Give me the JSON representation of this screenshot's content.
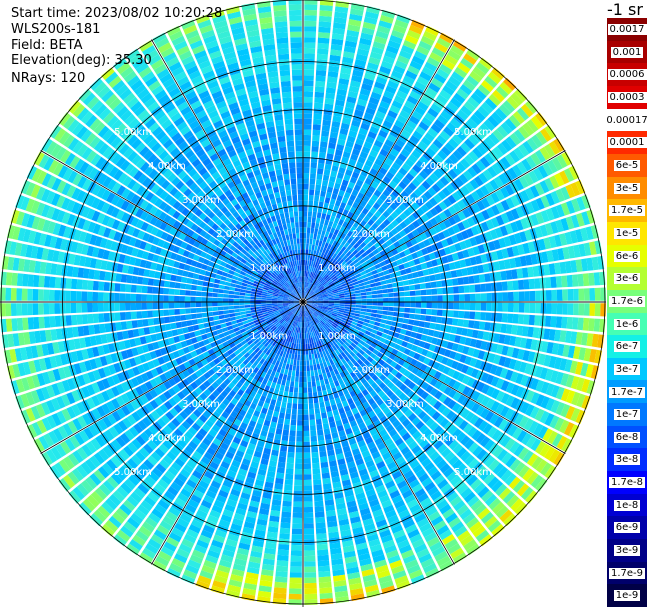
{
  "header": {
    "start_time": "Start time: 2023/08/02 10:20:28",
    "instrument": "WLS200s-181",
    "field": "Field: BETA",
    "elevation": "Elevation(deg): 35.30",
    "nrays": "NRays: 120"
  },
  "colorbar": {
    "title": "-1 sr",
    "labels": [
      "0.0017",
      "0.001",
      "0.0006",
      "0.0003",
      "0.00017",
      "0.0001",
      "6e-5",
      "3e-5",
      "1.7e-5",
      "1e-5",
      "6e-6",
      "3e-6",
      "1.7e-6",
      "1e-6",
      "6e-7",
      "3e-7",
      "1.7e-7",
      "1e-7",
      "6e-8",
      "3e-8",
      "1.7e-8",
      "1e-8",
      "6e-9",
      "3e-9",
      "1.7e-9",
      "1e-9"
    ],
    "colors": [
      "#8b0000",
      "#a80000",
      "#c80000",
      "#e00000",
      "#ffffff",
      "#ff2a00",
      "#ff5a00",
      "#ff8c00",
      "#ffb800",
      "#ffe600",
      "#e6ff00",
      "#b4ff32",
      "#78ff7a",
      "#46ffb4",
      "#14f0e6",
      "#00c8ff",
      "#009cff",
      "#0078ff",
      "#0050ff",
      "#002dff",
      "#0000ff",
      "#0000d2",
      "#0000aa",
      "#000087",
      "#00006a",
      "#000046"
    ]
  },
  "chart_data": {
    "type": "heatmap",
    "projection": "polar PPI scan",
    "field": "BETA",
    "units": "-1 sr",
    "scale": "log",
    "n_rays": 120,
    "elevation_deg": 35.3,
    "range_ring_labels": [
      "1.00km",
      "2.00km",
      "3.00km",
      "4.00km",
      "5.00km"
    ],
    "range_rings_km": [
      1,
      2,
      3,
      4,
      5
    ],
    "max_range_km": 6.3,
    "azimuth_spokes_deg": [
      0,
      30,
      60,
      90,
      120,
      150,
      180,
      210,
      240,
      270,
      300,
      330
    ],
    "typical_value_near_center": "3e-8",
    "typical_value_mid_range": "1e-7",
    "typical_value_outer_edge": "1e-6"
  }
}
